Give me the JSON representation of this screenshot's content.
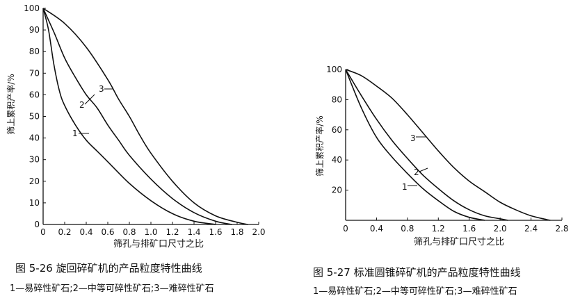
{
  "chart_data": [
    {
      "type": "line",
      "title": "图 5-26   旋回碎矿机的产品粒度特性曲线",
      "legend_note": "1—易碎性矿石;2—中等可碎性矿石;3—难碎性矿石",
      "xlabel": "筛孔与排矿口尺寸之比",
      "ylabel": "筛上累积产率/%",
      "xlim": [
        0,
        2.0
      ],
      "ylim": [
        0,
        100
      ],
      "xticks": [
        "0",
        "0.2",
        "0.4",
        "0.6",
        "0.8",
        "1.0",
        "1.2",
        "1.4",
        "1.6",
        "1.8",
        "2.0"
      ],
      "yticks": [
        "0",
        "10",
        "20",
        "30",
        "40",
        "50",
        "60",
        "70",
        "80",
        "90",
        "100"
      ],
      "grid": false,
      "series": [
        {
          "name": "1",
          "x": [
            0,
            0.05,
            0.1,
            0.15,
            0.2,
            0.3,
            0.4,
            0.5,
            0.6,
            0.8,
            1.0,
            1.2,
            1.4,
            1.6
          ],
          "y": [
            100,
            90,
            74,
            62,
            55,
            46,
            39,
            34,
            29,
            19,
            11,
            5,
            1.5,
            0
          ]
        },
        {
          "name": "2",
          "x": [
            0,
            0.1,
            0.2,
            0.3,
            0.4,
            0.5,
            0.6,
            0.7,
            0.8,
            1.0,
            1.2,
            1.4,
            1.6,
            1.75
          ],
          "y": [
            100,
            89,
            77,
            68,
            60,
            54,
            46,
            39,
            32,
            21,
            12,
            5.5,
            1.5,
            0
          ]
        },
        {
          "name": "3",
          "x": [
            0,
            0.2,
            0.4,
            0.6,
            0.7,
            0.8,
            0.9,
            1.0,
            1.2,
            1.4,
            1.6,
            1.8,
            1.9
          ],
          "y": [
            100,
            93,
            82,
            67,
            58,
            50,
            41,
            33,
            20,
            10,
            4,
            1,
            0
          ]
        }
      ]
    },
    {
      "type": "line",
      "title": "图 5-27   标准圆锥碎矿机的产品粒度特性曲线",
      "legend_note": "1—易碎性矿石;2—中等可碎性矿石;3—难碎性矿石",
      "xlabel": "筛孔与排矿口尺寸之比",
      "ylabel": "筛上累积产率/%",
      "xlim": [
        0,
        2.8
      ],
      "ylim": [
        0,
        100
      ],
      "xticks": [
        "0",
        "0.4",
        "0.8",
        "1.2",
        "1.6",
        "2.0",
        "2.4",
        "2.8"
      ],
      "yticks": [
        "20",
        "40",
        "60",
        "80",
        "100"
      ],
      "grid": false,
      "series": [
        {
          "name": "1",
          "x": [
            0,
            0.2,
            0.4,
            0.6,
            0.8,
            1.0,
            1.2,
            1.4,
            1.6,
            1.8
          ],
          "y": [
            100,
            75,
            55,
            42,
            31,
            21,
            13,
            6,
            2,
            0
          ]
        },
        {
          "name": "2",
          "x": [
            0,
            0.2,
            0.4,
            0.6,
            0.8,
            1.0,
            1.2,
            1.4,
            1.6,
            1.8,
            2.0,
            2.1
          ],
          "y": [
            100,
            83,
            67,
            53,
            41,
            30,
            21,
            13,
            7,
            3,
            1,
            0
          ]
        },
        {
          "name": "3",
          "x": [
            0,
            0.2,
            0.4,
            0.6,
            0.8,
            1.0,
            1.2,
            1.4,
            1.6,
            1.8,
            2.0,
            2.2,
            2.4,
            2.6,
            2.65
          ],
          "y": [
            100,
            96,
            89,
            81,
            70,
            58,
            46,
            35,
            26,
            19,
            12,
            7,
            3,
            0.5,
            0
          ]
        }
      ]
    }
  ]
}
